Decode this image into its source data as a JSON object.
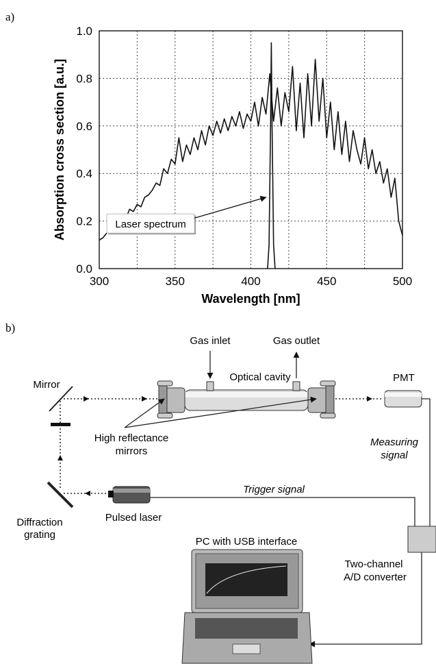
{
  "panel_labels": [
    "a)",
    "b)"
  ],
  "chart_data": {
    "type": "line",
    "xlabel": "Wavelength [nm]",
    "ylabel": "Absorption cross section [a.u.]",
    "annotation": "Laser spectrum",
    "xlim": [
      300,
      500
    ],
    "ylim": [
      0,
      1
    ],
    "xticks": [
      300,
      350,
      400,
      450,
      500
    ],
    "xminor": [
      325,
      375,
      425,
      475
    ],
    "yticks": [
      {
        "value": 0,
        "label": "0.0"
      },
      0.2,
      0.4,
      0.6,
      0.8,
      {
        "value": 1,
        "label": "1.0"
      }
    ],
    "grid": true,
    "series": [
      {
        "color": "#111111",
        "x": [
          300,
          302.5,
          305,
          307.5,
          310,
          312.5,
          315,
          317.5,
          320,
          322.5,
          325,
          327.5,
          330,
          332.5,
          335,
          337.5,
          340,
          342.5,
          345,
          347.5,
          350,
          352.5,
          355,
          357.5,
          360,
          362.5,
          365,
          367.5,
          370,
          372.5,
          375,
          377.5,
          380,
          382.5,
          385,
          387.5,
          390,
          392.5,
          395,
          397.5,
          400,
          402.5,
          405,
          407.5,
          410,
          412.5,
          415,
          417.5,
          420,
          422.5,
          425,
          427.5,
          430,
          432.5,
          435,
          437.5,
          440,
          442.5,
          445,
          447.5,
          450,
          452.5,
          455,
          457.5,
          460,
          462.5,
          465,
          467.5,
          470,
          472.5,
          475,
          477.5,
          480,
          482.5,
          485,
          487.5,
          490,
          492.5,
          495,
          497.5,
          500
        ],
        "values": [
          0.12,
          0.13,
          0.15,
          0.17,
          0.16,
          0.2,
          0.22,
          0.21,
          0.25,
          0.24,
          0.27,
          0.26,
          0.3,
          0.31,
          0.33,
          0.36,
          0.35,
          0.42,
          0.4,
          0.46,
          0.44,
          0.55,
          0.45,
          0.52,
          0.48,
          0.55,
          0.5,
          0.58,
          0.52,
          0.6,
          0.56,
          0.62,
          0.57,
          0.63,
          0.58,
          0.64,
          0.6,
          0.66,
          0.59,
          0.65,
          0.62,
          0.7,
          0.6,
          0.72,
          0.65,
          0.82,
          0.62,
          0.76,
          0.6,
          0.74,
          0.66,
          0.85,
          0.58,
          0.78,
          0.55,
          0.82,
          0.6,
          0.88,
          0.62,
          0.8,
          0.55,
          0.7,
          0.5,
          0.66,
          0.48,
          0.62,
          0.45,
          0.58,
          0.5,
          0.44,
          0.55,
          0.42,
          0.5,
          0.4,
          0.45,
          0.36,
          0.42,
          0.3,
          0.38,
          0.2,
          0.14
        ]
      },
      {
        "color": "#111111",
        "x": [
          411,
          412,
          413,
          413.5,
          414,
          415,
          416
        ],
        "values": [
          0,
          0.1,
          0.6,
          0.95,
          0.6,
          0.1,
          0
        ]
      }
    ]
  },
  "diagram": {
    "gas_inlet": "Gas inlet",
    "gas_outlet": "Gas outlet",
    "cavity": "Optical cavity",
    "mirror": "Mirror",
    "pmt": "PMT",
    "measuring": [
      "Measuring",
      "signal"
    ],
    "hr_mirrors": [
      "High reflectance",
      "mirrors"
    ],
    "trigger": "Trigger signal",
    "laser": "Pulsed laser",
    "grating": [
      "Diffraction",
      "grating"
    ],
    "pc": "PC with USB interface",
    "adc": [
      "Two-channel",
      "A/D converter"
    ]
  }
}
